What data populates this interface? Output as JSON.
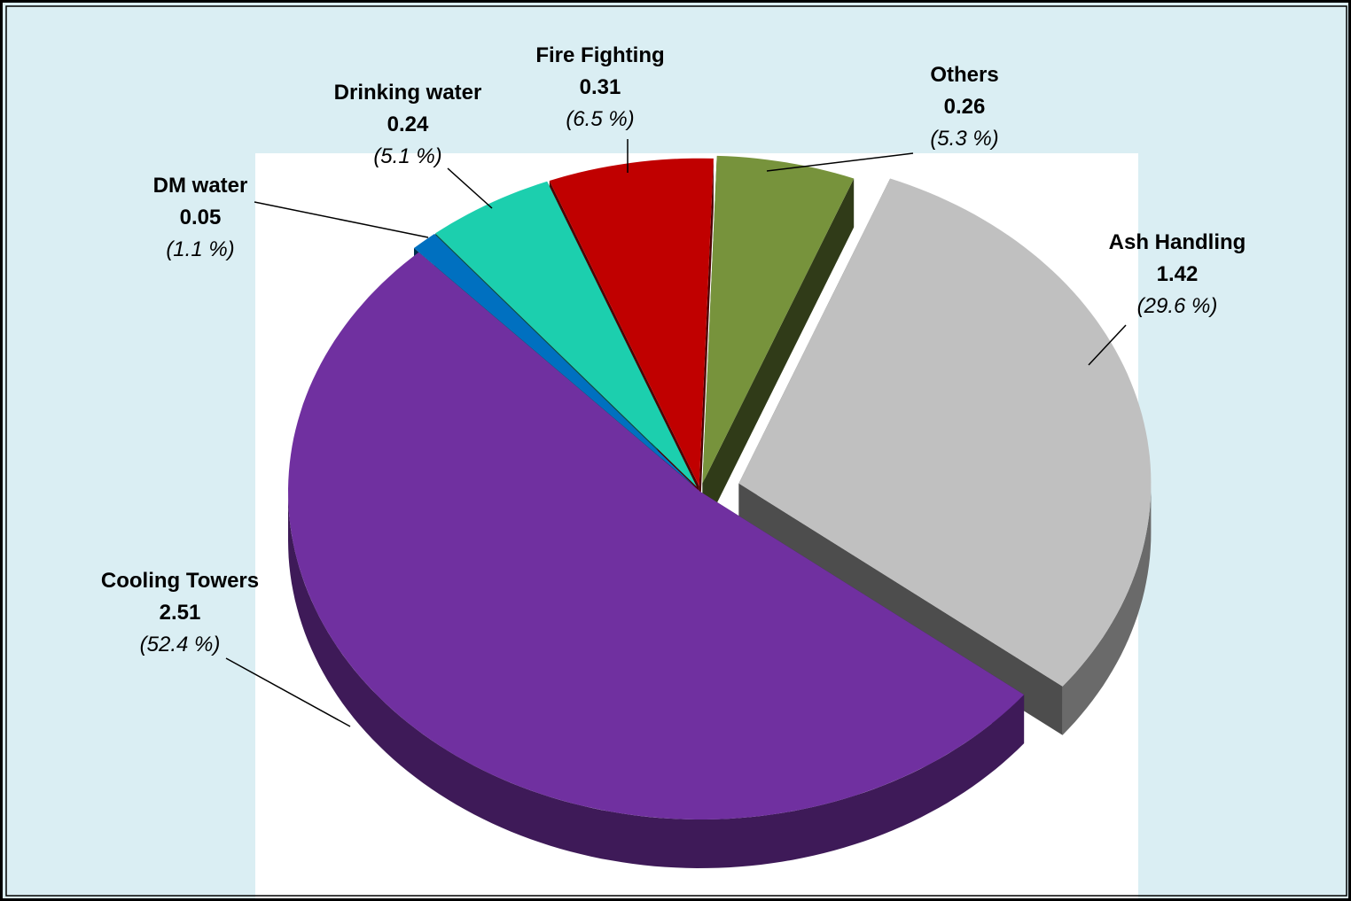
{
  "chart_data": {
    "type": "pie",
    "categories": [
      "Others",
      "Ash Handling",
      "Cooling Towers",
      "DM water",
      "Drinking water",
      "Fire Fighting"
    ],
    "values": [
      0.26,
      1.42,
      2.51,
      0.05,
      0.24,
      0.31
    ],
    "percent_labels": [
      "(5.3 %)",
      "(29.6 %)",
      "(52.4 %)",
      "(1.1 %)",
      "(5.1 %)",
      "(6.5 %)"
    ],
    "colors": [
      "#77933c",
      "#c0c0c0",
      "#7030a0",
      "#0070c0",
      "#1ccfae",
      "#c00000"
    ]
  }
}
